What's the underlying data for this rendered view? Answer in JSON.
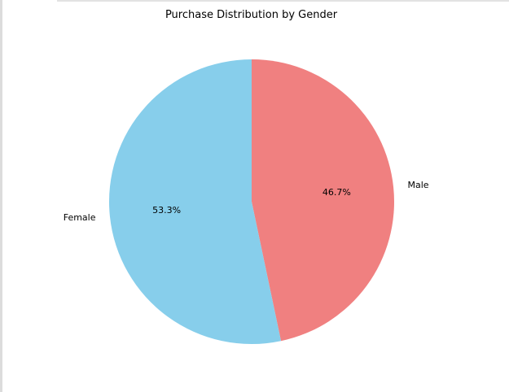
{
  "chart_data": {
    "type": "pie",
    "title": "Purchase Distribution by Gender",
    "categories": [
      "Male",
      "Female"
    ],
    "values": [
      46.7,
      53.3
    ],
    "value_labels": [
      "46.7%",
      "53.3%"
    ],
    "colors": [
      "#f08080",
      "#87ceeb"
    ],
    "start_angle": "top, clockwise",
    "legend": "none"
  }
}
